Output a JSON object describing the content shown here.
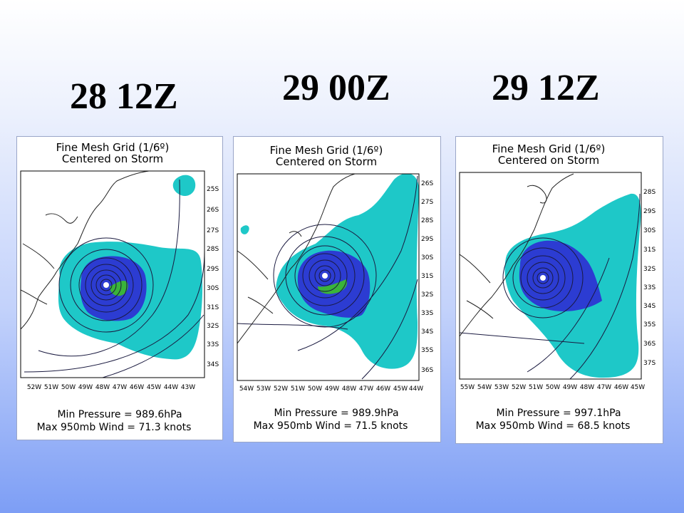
{
  "slide": {
    "titles": [
      "28 12Z",
      "29 00Z",
      "29 12Z"
    ]
  },
  "panels": [
    {
      "header_line1": "Fine Mesh Grid (1/6º)",
      "header_line2": "Centered on Storm",
      "lat_labels": [
        "25S",
        "26S",
        "27S",
        "28S",
        "29S",
        "30S",
        "31S",
        "32S",
        "33S",
        "34S"
      ],
      "lon_labels": [
        "52W",
        "51W",
        "50W",
        "49W",
        "48W",
        "47W",
        "46W",
        "45W",
        "44W",
        "43W"
      ],
      "min_pressure": "Min Pressure = 989.6hPa",
      "max_wind": "Max 950mb Wind = 71.3 knots"
    },
    {
      "header_line1": "Fine Mesh Grid (1/6º)",
      "header_line2": "Centered on Storm",
      "lat_labels": [
        "26S",
        "27S",
        "28S",
        "29S",
        "30S",
        "31S",
        "32S",
        "33S",
        "34S",
        "35S",
        "36S"
      ],
      "lon_labels": [
        "54W",
        "53W",
        "52W",
        "51W",
        "50W",
        "49W",
        "48W",
        "47W",
        "46W",
        "45W",
        "44W"
      ],
      "min_pressure": "Min Pressure = 989.9hPa",
      "max_wind": "Max 950mb Wind = 71.5 knots"
    },
    {
      "header_line1": "Fine Mesh Grid (1/6º)",
      "header_line2": "Centered on Storm",
      "lat_labels": [
        "28S",
        "29S",
        "30S",
        "31S",
        "32S",
        "33S",
        "34S",
        "35S",
        "36S",
        "37S"
      ],
      "lon_labels": [
        "55W",
        "54W",
        "53W",
        "52W",
        "51W",
        "50W",
        "49W",
        "48W",
        "47W",
        "46W",
        "45W"
      ],
      "min_pressure": "Min Pressure = 997.1hPa",
      "max_wind": "Max 950mb Wind = 68.5 knots"
    }
  ],
  "colors": {
    "cyan_fill": "#1ec8c8",
    "blue_fill": "#2c3cd2",
    "green_fill": "#3ab43a",
    "contour": "#1a1a40"
  }
}
